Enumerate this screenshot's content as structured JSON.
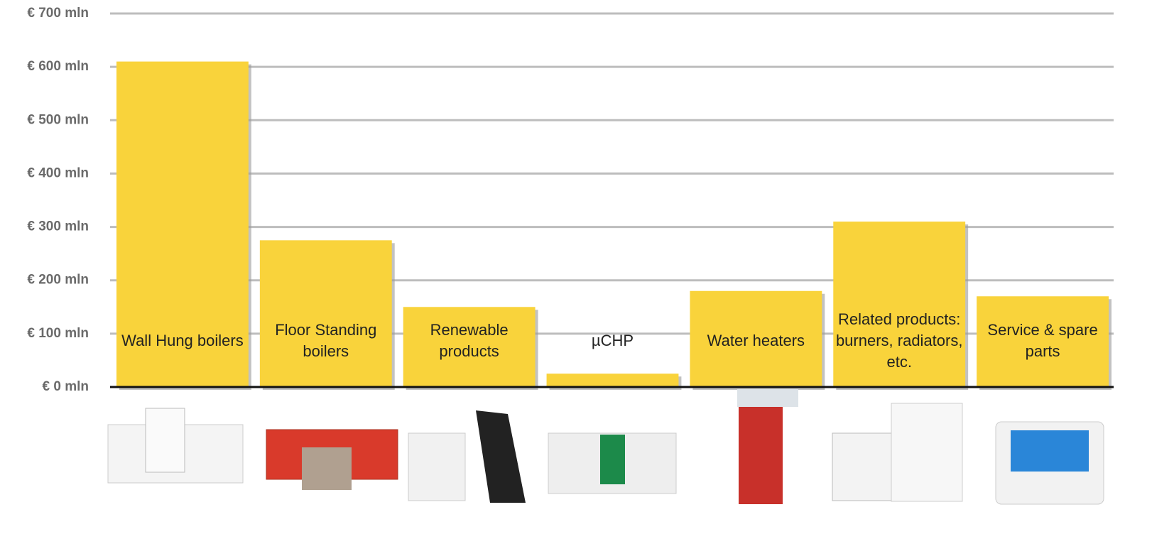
{
  "chart_data": {
    "type": "bar",
    "categories": [
      "Wall Hung boilers",
      "Floor Standing boilers",
      "Renewable products",
      "µCHP",
      "Water heaters",
      "Related products: burners, radiators, etc.",
      "Service & spare parts"
    ],
    "values": [
      610,
      275,
      150,
      25,
      180,
      310,
      170
    ],
    "color": "#f9d33b",
    "ylim": [
      0,
      700
    ],
    "yticks": [
      {
        "value": 0,
        "label": "€ 0 mln"
      },
      {
        "value": 100,
        "label": "€ 100 mln"
      },
      {
        "value": 200,
        "label": "€ 200 mln"
      },
      {
        "value": 300,
        "label": "€ 300 mln"
      },
      {
        "value": 400,
        "label": "€ 400 mln"
      },
      {
        "value": 500,
        "label": "€ 500 mln"
      },
      {
        "value": 600,
        "label": "€ 600 mln"
      },
      {
        "value": 700,
        "label": "€ 700 mln"
      }
    ],
    "grid": true
  }
}
